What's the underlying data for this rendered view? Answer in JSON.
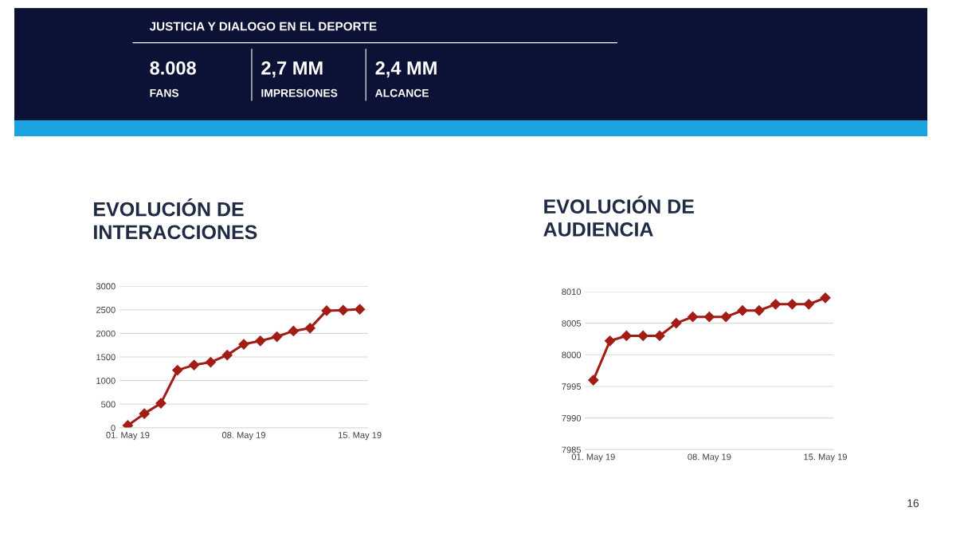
{
  "chart_data": [
    {
      "type": "other",
      "title": "JUSTICIA Y DIALOGO EN EL DEPORTE",
      "annotations": [
        "8.008",
        "FANS",
        "2,7 MM",
        "IMPRESIONES",
        "2,4 MM",
        "ALCANCE",
        "16"
      ]
    },
    {
      "type": "line",
      "title": "EVOLUCIÓN DE\nINTERACCIONES",
      "categories": [
        "01. May 19",
        null,
        null,
        null,
        null,
        null,
        null,
        "08. May 19",
        null,
        null,
        null,
        null,
        null,
        null,
        "15. May 19"
      ],
      "series": [
        {
          "color": "#a11d16",
          "values": [
            50,
            300,
            520,
            1220,
            1330,
            1390,
            1540,
            1770,
            1840,
            1930,
            2050,
            2110,
            2480,
            2490,
            2510
          ]
        }
      ],
      "ylim": [
        0,
        3000
      ],
      "yticks": [
        0,
        500,
        1000,
        1500,
        2000,
        2500,
        3000
      ],
      "grid": "y",
      "marker": "diamond",
      "line_style": "solid",
      "legend": false
    },
    {
      "type": "line",
      "title": "EVOLUCIÓN DE\nAUDIENCIA",
      "categories": [
        "01. May 19",
        null,
        null,
        null,
        null,
        null,
        null,
        "08. May 19",
        null,
        null,
        null,
        null,
        null,
        null,
        "15. May 19"
      ],
      "series": [
        {
          "color": "#a11d16",
          "values": [
            7996,
            8002.2,
            8003,
            8003,
            8003,
            8005,
            8006,
            8006,
            8006,
            8007,
            8007,
            8008,
            8008,
            8008,
            8009
          ]
        }
      ],
      "ylim": [
        7985,
        8010
      ],
      "yticks": [
        7985,
        7990,
        7995,
        8000,
        8005,
        8010
      ],
      "grid": "y",
      "marker": "diamond",
      "line_style": "solid",
      "legend": false
    }
  ]
}
